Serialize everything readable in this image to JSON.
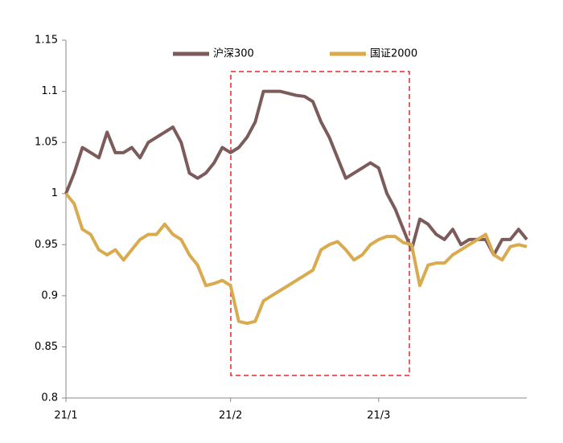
{
  "chart_data": {
    "type": "line",
    "categories": [
      "21/1",
      null,
      null,
      null,
      null,
      null,
      null,
      null,
      null,
      null,
      null,
      null,
      null,
      null,
      null,
      null,
      null,
      null,
      null,
      null,
      "21/2",
      null,
      null,
      null,
      null,
      null,
      null,
      null,
      null,
      null,
      null,
      null,
      null,
      null,
      null,
      null,
      null,
      null,
      "21/3",
      null,
      null,
      null,
      null,
      null,
      null,
      null,
      null,
      null,
      null,
      null,
      null,
      null,
      null,
      null,
      null,
      null,
      null
    ],
    "series": [
      {
        "name": "沪深300",
        "color": "#7b5c5a",
        "values": [
          1.0,
          1.02,
          1.045,
          1.04,
          1.035,
          1.06,
          1.04,
          1.04,
          1.045,
          1.035,
          1.05,
          1.055,
          1.06,
          1.065,
          1.05,
          1.02,
          1.015,
          1.02,
          1.03,
          1.045,
          1.04,
          1.045,
          1.055,
          1.07,
          1.1,
          1.1,
          1.1,
          1.098,
          1.096,
          1.095,
          1.09,
          1.07,
          1.055,
          1.035,
          1.015,
          1.02,
          1.025,
          1.03,
          1.025,
          1.0,
          0.985,
          0.965,
          0.945,
          0.975,
          0.97,
          0.96,
          0.955,
          0.965,
          0.95,
          0.955,
          0.955,
          0.955,
          0.94,
          0.955,
          0.955,
          0.965,
          0.955
        ]
      },
      {
        "name": "国证2000",
        "color": "#d9aa4e",
        "values": [
          1.0,
          0.99,
          0.965,
          0.96,
          0.945,
          0.94,
          0.945,
          0.935,
          0.945,
          0.955,
          0.96,
          0.96,
          0.97,
          0.96,
          0.955,
          0.94,
          0.93,
          0.91,
          0.912,
          0.915,
          0.91,
          0.875,
          0.873,
          0.875,
          0.895,
          0.9,
          0.905,
          0.91,
          0.915,
          0.92,
          0.925,
          0.945,
          0.95,
          0.953,
          0.945,
          0.935,
          0.94,
          0.95,
          0.955,
          0.958,
          0.958,
          0.952,
          0.95,
          0.91,
          0.93,
          0.932,
          0.932,
          0.94,
          0.945,
          0.95,
          0.955,
          0.96,
          0.94,
          0.935,
          0.948,
          0.95,
          0.948
        ]
      }
    ],
    "ylim": [
      0.8,
      1.15
    ],
    "yticks": [
      0.8,
      0.85,
      0.9,
      0.95,
      1,
      1.05,
      1.1,
      1.15
    ],
    "grid": false,
    "legend": "top"
  }
}
